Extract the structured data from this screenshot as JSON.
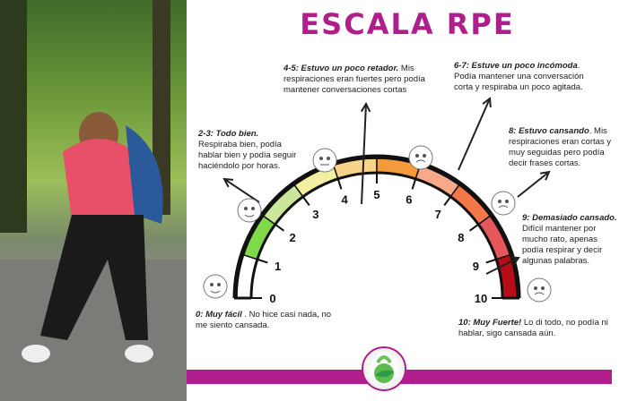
{
  "title": "ESCALA RPE",
  "photo": {
    "description_icon": "woman-resting-photo"
  },
  "scale": {
    "min": 0,
    "max": 10,
    "ticks": [
      "0",
      "1",
      "2",
      "3",
      "4",
      "5",
      "6",
      "7",
      "8",
      "9",
      "10"
    ],
    "segment_colors": [
      "#ffffff",
      "#7fd94a",
      "#cde79a",
      "#f3f0a2",
      "#f7d48a",
      "#f59a3a",
      "#f7a98a",
      "#f4784a",
      "#e5575a",
      "#b80d16"
    ]
  },
  "notes": [
    {
      "head": "0: Muy fácil",
      "body": " . No hice casi nada, no me siento cansada."
    },
    {
      "head": "2-3: Todo bien.",
      "body": " Respiraba bien, podía hablar bien y podía seguir haciéndolo por horas."
    },
    {
      "head": "4-5: Estuvo un poco retador.",
      "body": " Mis respiraciones eran fuertes pero podía mantener conversaciones cortas"
    },
    {
      "head": "6-7: Estuve un poco incómoda",
      "body": ". Podía mantener una conversación corta y respiraba un poco agitada."
    },
    {
      "head": "8: Estuvo cansando",
      "body": ". Mis respiraciones eran cortas y muy seguidas pero podía decir frases cortas."
    },
    {
      "head": "9:  Demasiado cansado.",
      "body": " Difícil  mantener por mucho rato, apenas podía respirar y decir algunas palabras."
    },
    {
      "head": "10:  Muy Fuerte!",
      "body": " Lo di todo, no podía ni hablar, sigo cansada aún."
    }
  ],
  "colors": {
    "accent": "#b01e8c"
  },
  "logo": {
    "icon": "kettlebell-leaf-logo"
  }
}
